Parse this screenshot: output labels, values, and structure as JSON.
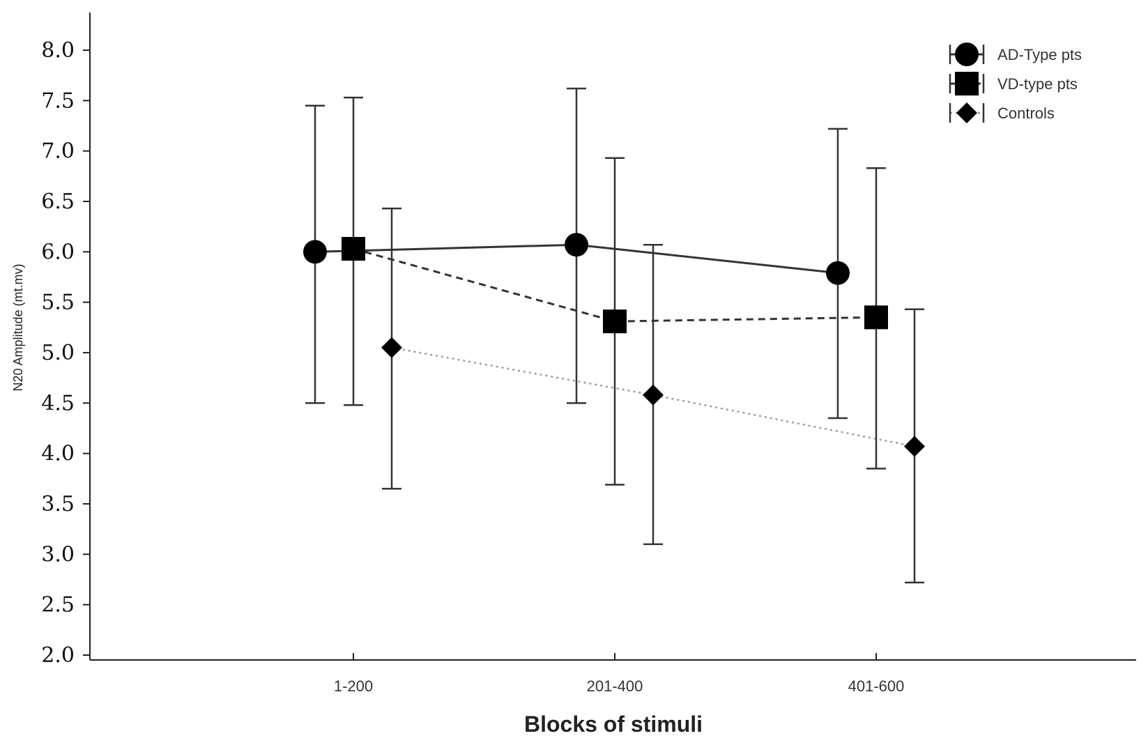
{
  "chart_data": {
    "type": "line",
    "xlabel": "Blocks of stimuli",
    "ylabel": "N20 Amplitude (mt.mv)",
    "categories": [
      "1-200",
      "201-400",
      "401-600"
    ],
    "ylim": [
      2.0,
      8.0
    ],
    "yticks": [
      "8.0",
      "7.5",
      "7.0",
      "6.5",
      "6.0",
      "5.5",
      "5.0",
      "4.5",
      "4.0",
      "3.5",
      "3.0",
      "2.5",
      "2.0"
    ],
    "legend_position": "top-right",
    "grid": false,
    "series": [
      {
        "name": "AD-Type pts",
        "marker": "circle",
        "line": "solid",
        "color": "#000000",
        "values": [
          6.0,
          6.07,
          5.79
        ],
        "lower": [
          4.5,
          4.5,
          4.35
        ],
        "upper": [
          7.45,
          7.62,
          7.22
        ]
      },
      {
        "name": "VD-type pts",
        "marker": "square",
        "line": "dashed",
        "color": "#000000",
        "values": [
          6.03,
          5.31,
          5.35
        ],
        "lower": [
          4.48,
          3.69,
          3.85
        ],
        "upper": [
          7.53,
          6.93,
          6.83
        ]
      },
      {
        "name": "Controls",
        "marker": "diamond",
        "line": "dotted",
        "color": "#000000",
        "values": [
          5.05,
          4.58,
          4.07
        ],
        "lower": [
          3.65,
          3.1,
          2.72
        ],
        "upper": [
          6.43,
          6.07,
          5.43
        ]
      }
    ]
  }
}
